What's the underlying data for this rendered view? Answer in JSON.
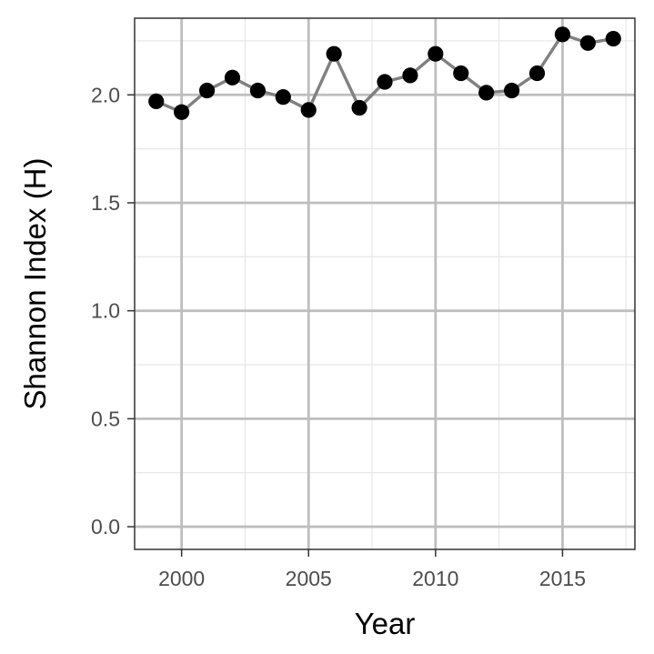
{
  "chart_data": {
    "type": "line",
    "title": "",
    "xlabel": "Year",
    "ylabel": "Shannon Index (H)",
    "xlim": [
      1998.15,
      2017.85
    ],
    "ylim": [
      -0.105,
      2.355
    ],
    "x_ticks": [
      2000,
      2005,
      2010,
      2015
    ],
    "x_tick_labels": [
      "2000",
      "2005",
      "2010",
      "2015"
    ],
    "x_minor_ticks": [
      2002.5,
      2007.5,
      2012.5,
      2017.5
    ],
    "y_ticks": [
      0.0,
      0.5,
      1.0,
      1.5,
      2.0
    ],
    "y_tick_labels": [
      "0.0",
      "0.5",
      "1.0",
      "1.5",
      "2.0"
    ],
    "y_minor_ticks": [
      0.25,
      0.75,
      1.25,
      1.75,
      2.25
    ],
    "grid": true,
    "legend": "none",
    "line_color": "#808080",
    "point_color": "#000000",
    "grid_major_color": "#bebebe",
    "grid_minor_color": "#e5e5e5",
    "series": [
      {
        "x": [
          1999,
          2000,
          2001,
          2002,
          2003,
          2004,
          2005,
          2006,
          2007,
          2008,
          2009,
          2010,
          2011,
          2012,
          2013,
          2014,
          2015,
          2016,
          2017
        ],
        "y": [
          1.97,
          1.92,
          2.02,
          2.08,
          2.02,
          1.99,
          1.93,
          2.19,
          1.94,
          2.06,
          2.09,
          2.19,
          2.1,
          2.01,
          2.02,
          2.1,
          2.28,
          2.24,
          2.26
        ]
      }
    ]
  }
}
